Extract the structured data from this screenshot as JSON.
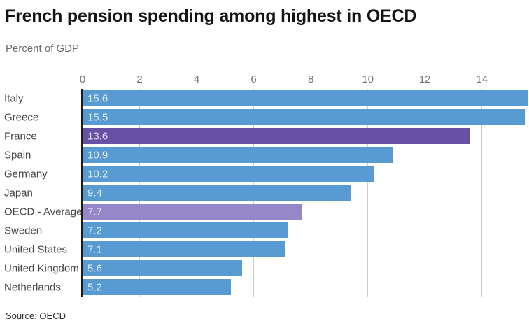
{
  "header": {
    "title": "French pension spending among highest in OECD",
    "subtitle": "Percent of GDP"
  },
  "footer": {
    "source": "Source: OECD"
  },
  "colors": {
    "bar_default": "#579bd2",
    "bar_france": "#6651a5",
    "bar_oecd_average": "#9687c8",
    "axis_line": "#1c1c1c",
    "gridline": "#cccccc",
    "tick_text": "#757575",
    "category_text": "#454545",
    "value_text": "rgba(255,255,255,0.80)"
  },
  "chart_data": {
    "type": "bar",
    "orientation": "horizontal",
    "title": "French pension spending among highest in OECD",
    "subtitle": "Percent of GDP",
    "source": "Source: OECD",
    "categories": [
      "Italy",
      "Greece",
      "France",
      "Spain",
      "Germany",
      "Japan",
      "OECD - Average",
      "Sweden",
      "United States",
      "United Kingdom",
      "Netherlands"
    ],
    "values": [
      15.6,
      15.5,
      13.6,
      10.9,
      10.2,
      9.4,
      7.7,
      7.2,
      7.1,
      5.6,
      5.2
    ],
    "highlights": {
      "France": "#6651a5",
      "OECD - Average": "#9687c8"
    },
    "xticks": [
      0,
      2,
      4,
      6,
      8,
      10,
      12,
      14
    ],
    "xlim": [
      0,
      15.65
    ],
    "grid": true,
    "legend": false,
    "value_labels": "inside-left",
    "xlabel": "",
    "ylabel": ""
  }
}
